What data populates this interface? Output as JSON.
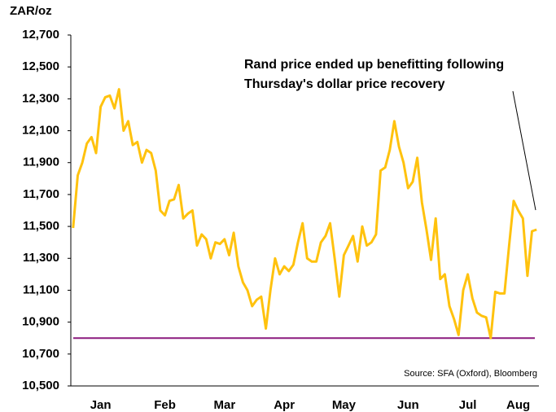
{
  "chart_data": {
    "type": "line",
    "y_label": "ZAR/oz",
    "annotation": [
      "Rand price ended up benefitting following",
      "Thursday's dollar price recovery"
    ],
    "source": "Source: SFA (Oxford), Bloomberg",
    "categories": [
      null,
      null,
      null,
      null,
      null,
      null,
      "Jan",
      null,
      null,
      null,
      null,
      null,
      null,
      null,
      null,
      null,
      null,
      null,
      null,
      null,
      "Feb",
      null,
      null,
      null,
      null,
      null,
      null,
      null,
      null,
      null,
      null,
      null,
      null,
      "Mar",
      null,
      null,
      null,
      null,
      null,
      null,
      null,
      null,
      null,
      null,
      null,
      null,
      "Apr",
      null,
      null,
      null,
      null,
      null,
      null,
      null,
      null,
      null,
      null,
      null,
      null,
      "May",
      null,
      null,
      null,
      null,
      null,
      null,
      null,
      null,
      null,
      null,
      null,
      null,
      null,
      "Jun",
      null,
      null,
      null,
      null,
      null,
      null,
      null,
      null,
      null,
      null,
      null,
      null,
      "Jul",
      null,
      null,
      null,
      null,
      null,
      null,
      null,
      null,
      null,
      null,
      "Aug",
      null,
      null,
      null,
      null
    ],
    "series": [
      {
        "name": "Rand price",
        "color": "#ffc20e",
        "values": [
          11490,
          11820,
          11900,
          12020,
          12060,
          11960,
          12250,
          12310,
          12320,
          12240,
          12360,
          12100,
          12160,
          12010,
          12030,
          11900,
          11980,
          11960,
          11850,
          11600,
          11570,
          11660,
          11670,
          11760,
          11550,
          11580,
          11600,
          11380,
          11450,
          11420,
          11300,
          11400,
          11390,
          11420,
          11320,
          11460,
          11250,
          11150,
          11100,
          11000,
          11040,
          11060,
          10860,
          11100,
          11300,
          11200,
          11250,
          11220,
          11260,
          11400,
          11520,
          11300,
          11280,
          11280,
          11400,
          11440,
          11520,
          11300,
          11060,
          11320,
          11380,
          11440,
          11280,
          11500,
          11380,
          11400,
          11450,
          11850,
          11870,
          11980,
          12160,
          12000,
          11900,
          11740,
          11780,
          11930,
          11650,
          11480,
          11290,
          11550,
          11170,
          11200,
          11000,
          10920,
          10820,
          11100,
          11200,
          11050,
          10960,
          10940,
          10930,
          10800,
          11090,
          11080,
          11080,
          11380,
          11660,
          11600,
          11550,
          11190,
          11470,
          11480
        ]
      }
    ],
    "reference_line": {
      "value": 10800,
      "color": "#8b1a7e"
    },
    "ylim": [
      10500,
      12700
    ],
    "yticks": [
      {
        "value": 10500,
        "label": "10,500"
      },
      {
        "value": 10700,
        "label": "10,700"
      },
      {
        "value": 10900,
        "label": "10,900"
      },
      {
        "value": 11100,
        "label": "11,100"
      },
      {
        "value": 11300,
        "label": "11,300"
      },
      {
        "value": 11500,
        "label": "11,500"
      },
      {
        "value": 11700,
        "label": "11,700"
      },
      {
        "value": 11900,
        "label": "11,900"
      },
      {
        "value": 12100,
        "label": "12,100"
      },
      {
        "value": 12300,
        "label": "12,300"
      },
      {
        "value": 12500,
        "label": "12,500"
      },
      {
        "value": 12700,
        "label": "12,700"
      }
    ],
    "grid": false
  }
}
